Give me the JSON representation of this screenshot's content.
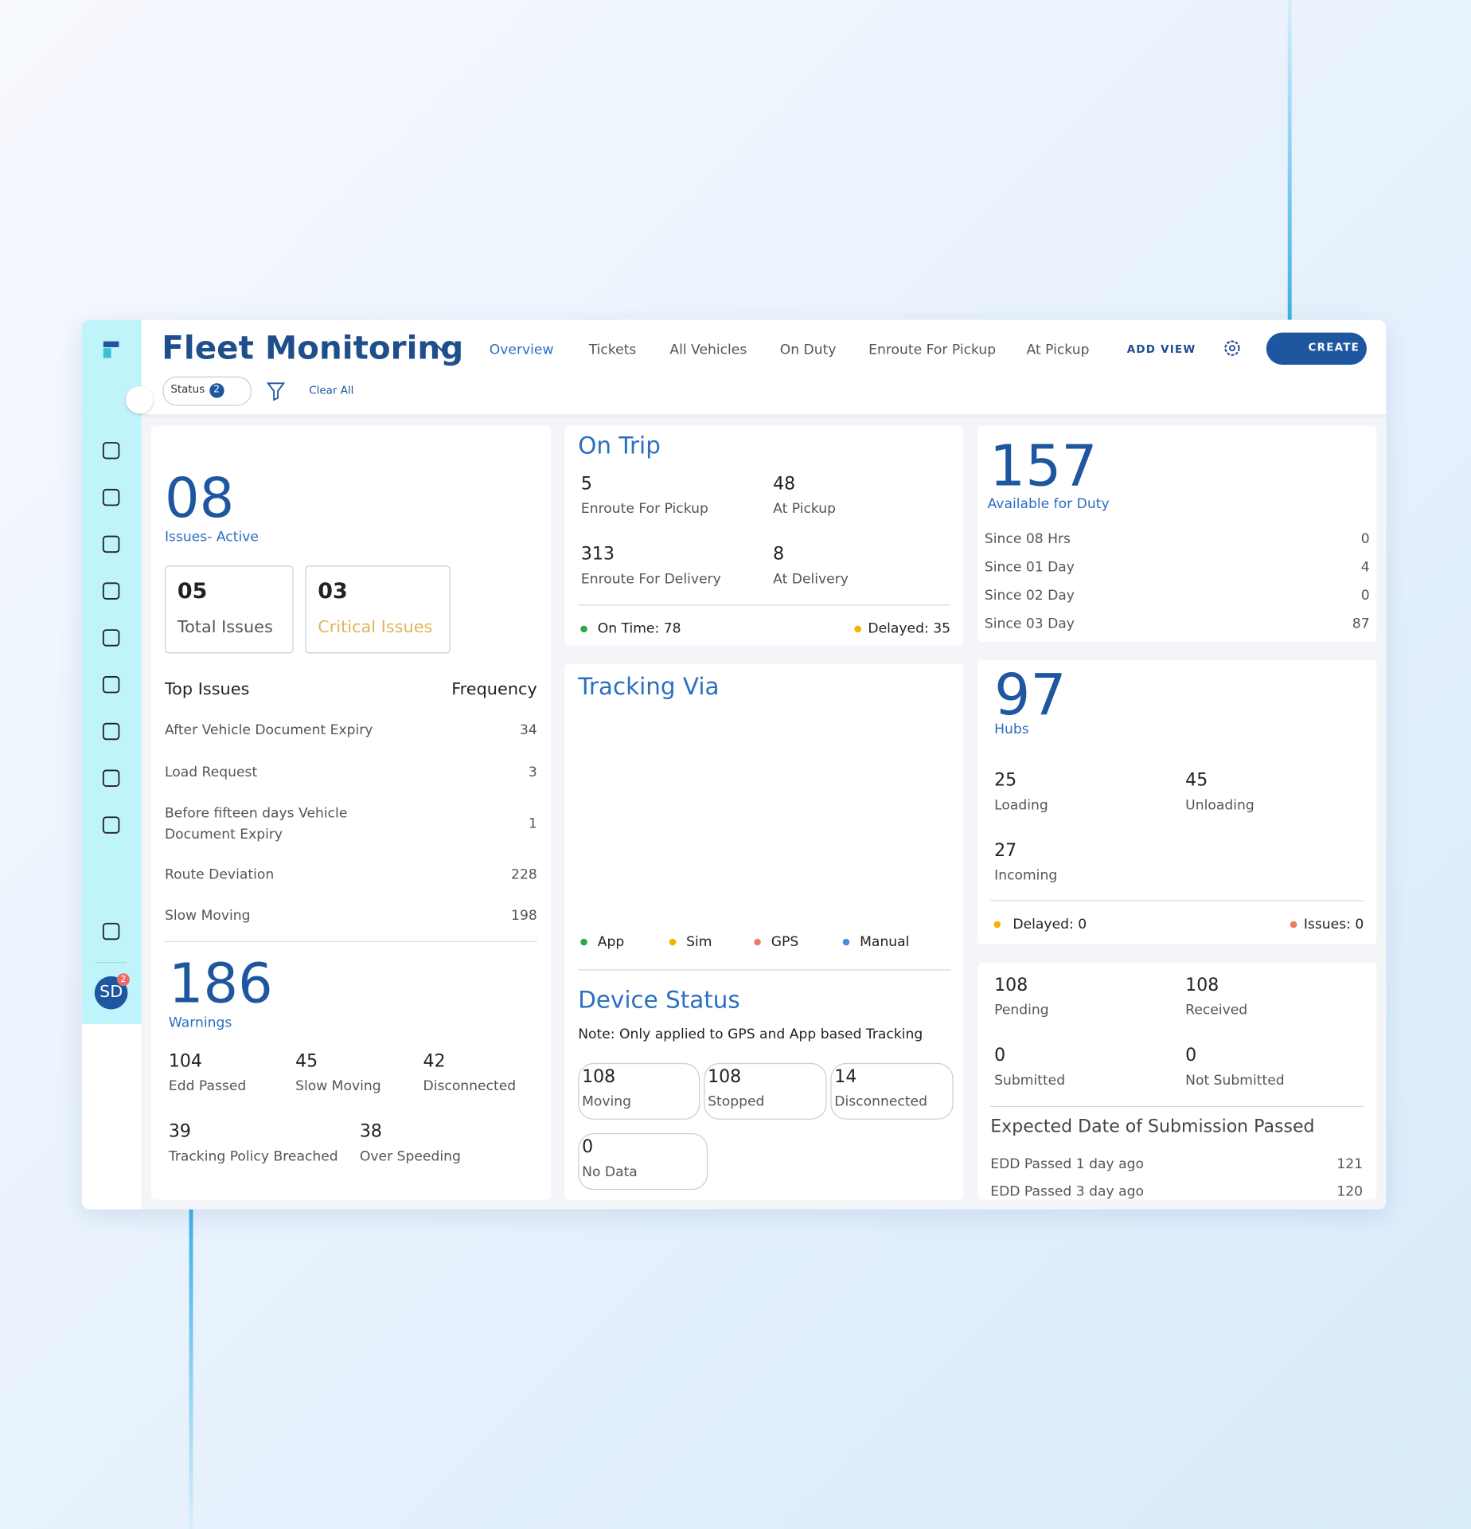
{
  "header": {
    "title": "Fleet Monitoring",
    "tabs": [
      "Overview",
      "Tickets",
      "All Vehicles",
      "On Duty",
      "Enroute For Pickup",
      "At Pickup"
    ],
    "add_view": "ADD VIEW",
    "create": "CREATE"
  },
  "filters": {
    "status": "Status",
    "status_count": 2,
    "clear": "Clear All"
  },
  "user": {
    "initials": "SD",
    "notifications": 2
  },
  "issues": {
    "value": "08",
    "label": "Issues- Active",
    "boxes": [
      {
        "value": "05",
        "label": "Total Issues"
      },
      {
        "value": "03",
        "label": "Critical Issues"
      }
    ],
    "columns": [
      "Top Issues",
      "Frequency"
    ],
    "rows": [
      [
        "After Vehicle Document Expiry",
        34
      ],
      [
        "Load Request",
        3
      ],
      [
        "Before fifteen days Vehicle Document Expiry",
        1
      ],
      [
        "Route Deviation",
        228
      ],
      [
        "Slow Moving",
        198
      ]
    ]
  },
  "warnings": {
    "value": 186,
    "label": "Warnings",
    "items": [
      {
        "value": 104,
        "label": "Edd Passed"
      },
      {
        "value": 45,
        "label": "Slow Moving"
      },
      {
        "value": 42,
        "label": "Disconnected"
      },
      {
        "value": 39,
        "label": "Tracking Policy Breached"
      },
      {
        "value": 38,
        "label": "Over Speeding"
      }
    ]
  },
  "on_trip": {
    "title": "On Trip",
    "items": [
      {
        "value": 5,
        "label": "Enroute For Pickup"
      },
      {
        "value": 48,
        "label": "At Pickup"
      },
      {
        "value": 313,
        "label": "Enroute For Delivery"
      },
      {
        "value": 8,
        "label": "At Delivery"
      }
    ],
    "on_time": "On Time: 78",
    "delayed": "Delayed: 35"
  },
  "tracking": {
    "title": "Tracking Via",
    "legend": [
      "App",
      "Sim",
      "GPS",
      "Manual"
    ]
  },
  "device_status": {
    "title": "Device Status",
    "note": "Note: Only applied to GPS and App based Tracking",
    "items": [
      {
        "value": 108,
        "label": "Moving"
      },
      {
        "value": 108,
        "label": "Stopped"
      },
      {
        "value": 14,
        "label": "Disconnected"
      },
      {
        "value": 0,
        "label": "No Data"
      }
    ]
  },
  "available": {
    "value": 157,
    "label": "Available for Duty",
    "rows": [
      [
        "Since 08 Hrs",
        0
      ],
      [
        "Since 01 Day",
        4
      ],
      [
        "Since 02 Day",
        0
      ],
      [
        "Since 03 Day",
        87
      ]
    ]
  },
  "hubs": {
    "value": 97,
    "label": "Hubs",
    "items": [
      {
        "value": 25,
        "label": "Loading"
      },
      {
        "value": 45,
        "label": "Unloading"
      },
      {
        "value": 27,
        "label": "Incoming"
      }
    ],
    "delayed": "Delayed: 0",
    "issues": "Issues: 0"
  },
  "submission": {
    "items": [
      {
        "value": 108,
        "label": "Pending"
      },
      {
        "value": 108,
        "label": "Received"
      },
      {
        "value": 0,
        "label": "Submitted"
      },
      {
        "value": 0,
        "label": "Not Submitted"
      }
    ],
    "title": "Expected Date of Submission Passed",
    "rows": [
      [
        "EDD Passed 1 day ago",
        121
      ],
      [
        "EDD Passed 3 day ago",
        120
      ]
    ]
  }
}
